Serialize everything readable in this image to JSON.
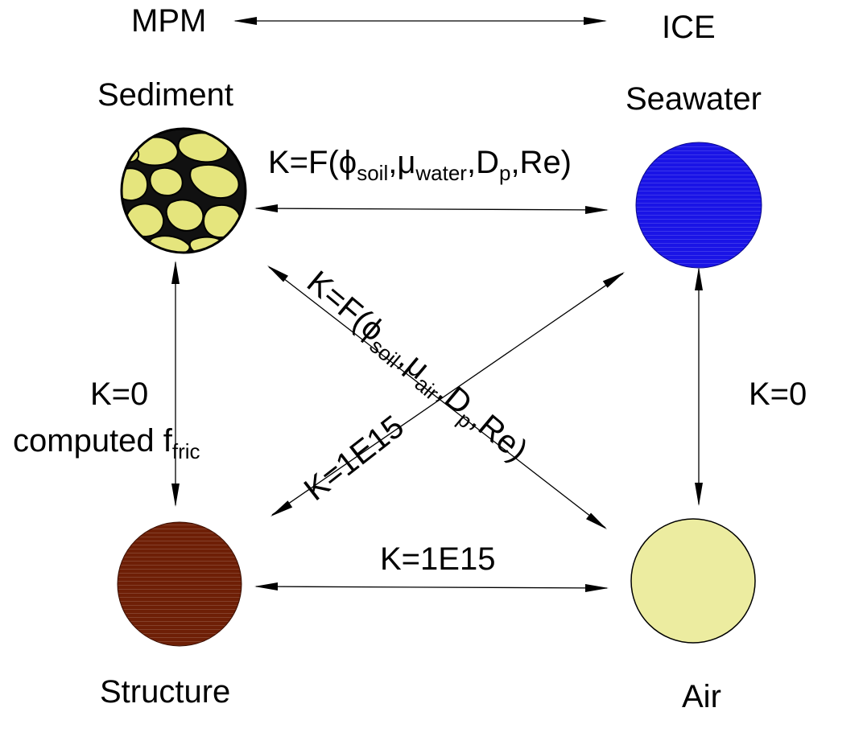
{
  "header": {
    "left_label": "MPM",
    "right_label": "ICE"
  },
  "materials": {
    "sediment": {
      "label": "Sediment",
      "color": "#e5e57d"
    },
    "seawater": {
      "label": "Seawater",
      "color": "#1a14e6"
    },
    "structure": {
      "label": "Structure",
      "color": "#6e1f06"
    },
    "air": {
      "label": "Air",
      "color": "#ececa0"
    }
  },
  "couplings": {
    "sediment_seawater": {
      "prefix": "K=F(",
      "sym": "ϕ",
      "sub1": "soil",
      "mu": ",μ",
      "sub2": "water",
      "d": ",D",
      "sub3": "p",
      "suffix": ",Re)"
    },
    "sediment_air": {
      "prefix": "K=F(",
      "sym": "ϕ",
      "sub1": "soil",
      "mu": ",μ",
      "sub2": "air",
      "d": ",D",
      "sub3": "p",
      "suffix": ",Re)"
    },
    "structure_seawater": {
      "text": "K=1E15"
    },
    "structure_air": {
      "text": "K=1E15"
    },
    "seawater_air": {
      "text": "K=0"
    },
    "sediment_structure": {
      "text": "K=0",
      "friction_prefix": "computed f",
      "friction_sub": "fric"
    }
  },
  "colors": {
    "stroke": "#000000",
    "background": "#ffffff"
  }
}
